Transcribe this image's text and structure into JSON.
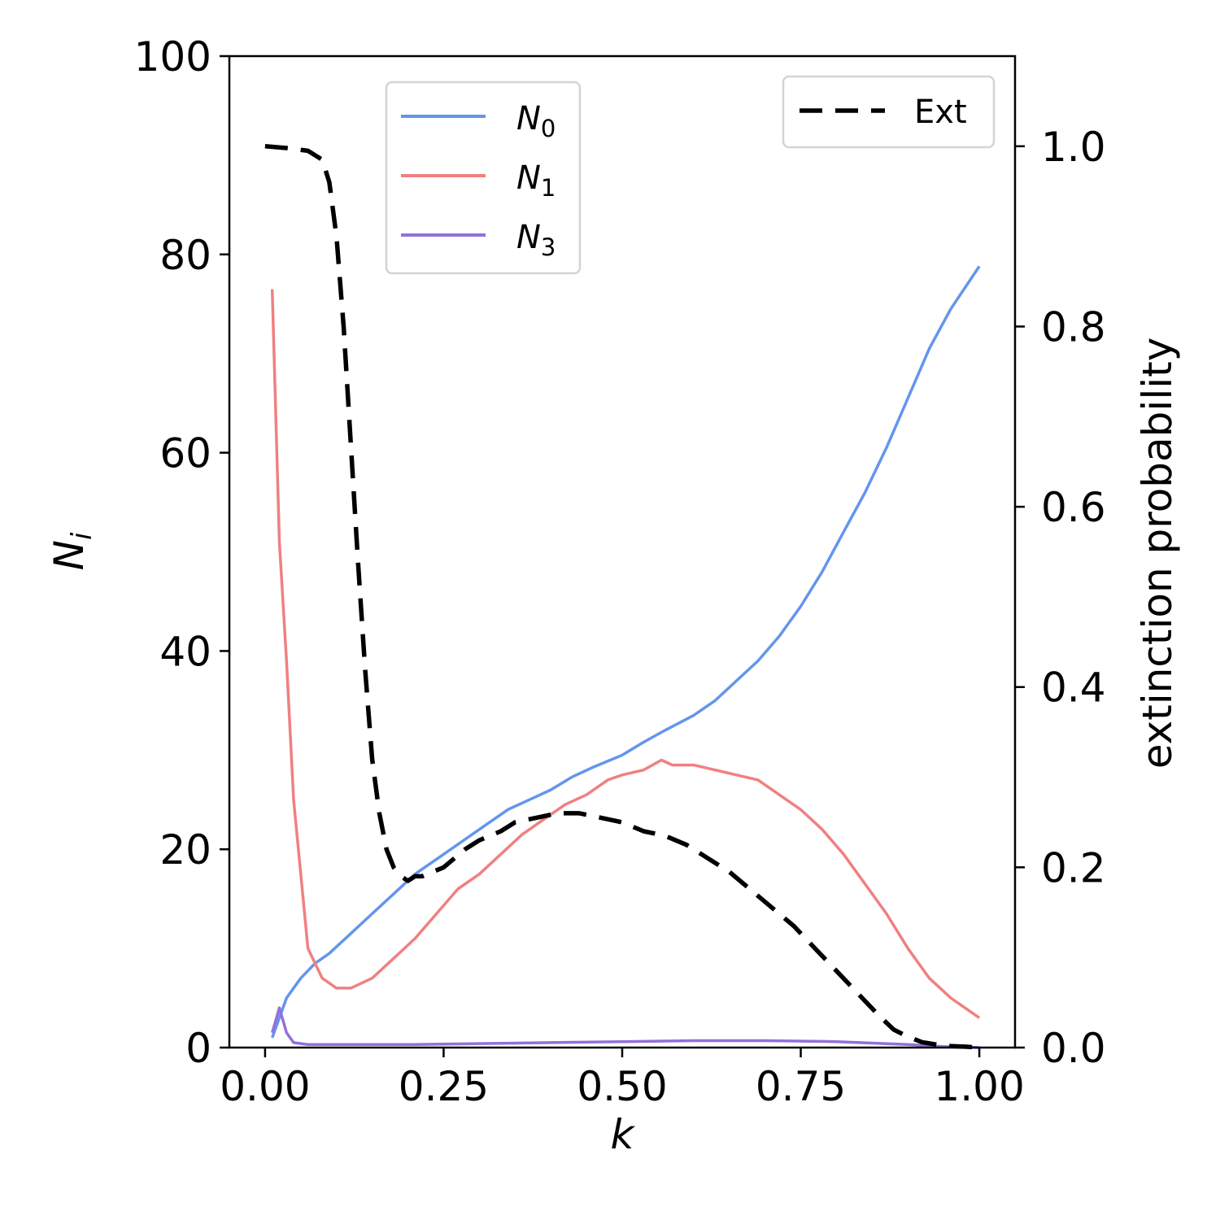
{
  "chart_data": {
    "type": "line",
    "xlabel": "k",
    "ylabel": "N",
    "ylabel_subscript": "i",
    "y2label": "extinction probability",
    "xlim": [
      -0.05,
      1.05
    ],
    "ylim": [
      0,
      100
    ],
    "y2lim": [
      0,
      1.1
    ],
    "xticks": [
      "0.00",
      "0.25",
      "0.50",
      "0.75",
      "1.00"
    ],
    "yticks": [
      "0",
      "20",
      "40",
      "60",
      "80",
      "100"
    ],
    "y2ticks": [
      "0.0",
      "0.2",
      "0.4",
      "0.6",
      "0.8",
      "1.0"
    ],
    "legend_left": [
      {
        "name": "N",
        "subscript": "0",
        "color": "#6495ED"
      },
      {
        "name": "N",
        "subscript": "1",
        "color": "#F08080"
      },
      {
        "name": "N",
        "subscript": "3",
        "color": "#9370DB"
      }
    ],
    "legend_right": [
      {
        "name": "Ext",
        "color": "#000000"
      }
    ],
    "series": [
      {
        "name": "N0",
        "axis": "left",
        "color": "#6495ED",
        "dash": "",
        "x": [
          0.01,
          0.03,
          0.05,
          0.07,
          0.09,
          0.12,
          0.15,
          0.18,
          0.21,
          0.25,
          0.28,
          0.31,
          0.34,
          0.37,
          0.4,
          0.43,
          0.46,
          0.5,
          0.53,
          0.56,
          0.6,
          0.63,
          0.66,
          0.69,
          0.72,
          0.75,
          0.78,
          0.81,
          0.84,
          0.87,
          0.9,
          0.93,
          0.96,
          1.0
        ],
        "values": [
          1.0,
          5.0,
          7.0,
          8.5,
          9.5,
          11.5,
          13.5,
          15.5,
          17.5,
          19.5,
          21.0,
          22.5,
          24.0,
          25.0,
          26.0,
          27.3,
          28.3,
          29.5,
          30.8,
          32.0,
          33.5,
          35.0,
          37.0,
          39.0,
          41.5,
          44.5,
          48.0,
          52.0,
          56.0,
          60.5,
          65.5,
          70.5,
          74.5,
          78.8
        ]
      },
      {
        "name": "N1",
        "axis": "left",
        "color": "#F08080",
        "dash": "",
        "x": [
          0.01,
          0.02,
          0.03,
          0.04,
          0.06,
          0.08,
          0.1,
          0.12,
          0.15,
          0.18,
          0.21,
          0.24,
          0.27,
          0.3,
          0.33,
          0.36,
          0.39,
          0.42,
          0.45,
          0.48,
          0.5,
          0.53,
          0.555,
          0.57,
          0.6,
          0.63,
          0.66,
          0.69,
          0.72,
          0.75,
          0.78,
          0.81,
          0.84,
          0.87,
          0.9,
          0.93,
          0.96,
          1.0
        ],
        "values": [
          76.5,
          51.0,
          39.0,
          25.0,
          10.0,
          7.0,
          6.0,
          6.0,
          7.0,
          9.0,
          11.0,
          13.5,
          16.0,
          17.5,
          19.5,
          21.5,
          23.0,
          24.5,
          25.5,
          27.0,
          27.5,
          28.0,
          29.0,
          28.5,
          28.5,
          28.0,
          27.5,
          27.0,
          25.5,
          24.0,
          22.0,
          19.5,
          16.5,
          13.5,
          10.0,
          7.0,
          5.0,
          3.0
        ]
      },
      {
        "name": "N3",
        "axis": "left",
        "color": "#9370DB",
        "dash": "",
        "x": [
          0.01,
          0.02,
          0.03,
          0.04,
          0.06,
          0.1,
          0.2,
          0.3,
          0.4,
          0.5,
          0.6,
          0.7,
          0.8,
          0.9,
          0.95,
          1.0
        ],
        "values": [
          1.5,
          4.0,
          1.5,
          0.5,
          0.3,
          0.3,
          0.3,
          0.4,
          0.5,
          0.6,
          0.7,
          0.7,
          0.6,
          0.3,
          0.1,
          0.0
        ]
      },
      {
        "name": "Ext",
        "axis": "right",
        "color": "#000000",
        "dash": "28,16",
        "x": [
          0.0,
          0.03,
          0.06,
          0.08,
          0.09,
          0.1,
          0.11,
          0.12,
          0.13,
          0.14,
          0.15,
          0.16,
          0.17,
          0.18,
          0.19,
          0.2,
          0.21,
          0.22,
          0.25,
          0.28,
          0.3,
          0.33,
          0.35,
          0.38,
          0.41,
          0.44,
          0.47,
          0.5,
          0.53,
          0.56,
          0.59,
          0.62,
          0.65,
          0.68,
          0.71,
          0.74,
          0.77,
          0.8,
          0.83,
          0.86,
          0.88,
          0.9,
          0.92,
          0.95,
          0.98,
          1.0
        ],
        "values": [
          1.0,
          0.998,
          0.995,
          0.985,
          0.96,
          0.9,
          0.8,
          0.67,
          0.54,
          0.42,
          0.32,
          0.26,
          0.22,
          0.2,
          0.19,
          0.185,
          0.19,
          0.19,
          0.2,
          0.22,
          0.23,
          0.24,
          0.25,
          0.255,
          0.26,
          0.26,
          0.255,
          0.25,
          0.24,
          0.235,
          0.225,
          0.21,
          0.195,
          0.175,
          0.155,
          0.135,
          0.11,
          0.085,
          0.06,
          0.035,
          0.02,
          0.012,
          0.006,
          0.002,
          0.001,
          0.0
        ]
      }
    ]
  }
}
